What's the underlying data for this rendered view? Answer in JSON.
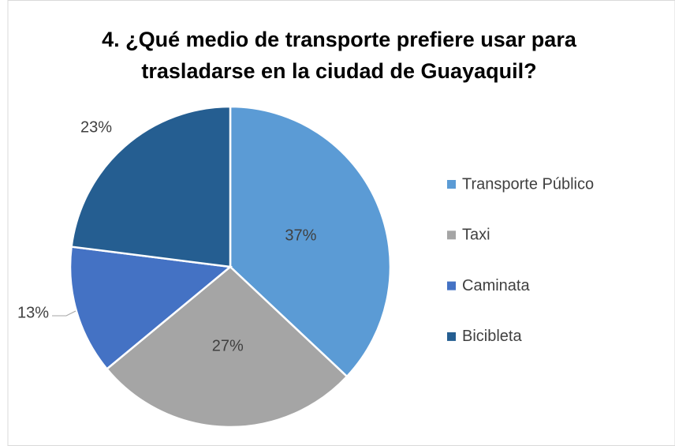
{
  "chart_data": {
    "type": "pie",
    "title": "4. ¿Qué medio de transporte prefiere usar para trasladarse en la ciudad de Guayaquil?",
    "categories": [
      "Transporte Público",
      "Taxi",
      "Caminata",
      "Bicibleta"
    ],
    "values": [
      37,
      27,
      13,
      23
    ],
    "value_labels": [
      "37%",
      "27%",
      "13%",
      "23%"
    ],
    "colors": [
      "#5b9bd5",
      "#a5a5a5",
      "#4472c4",
      "#255e91"
    ],
    "legend": "right"
  }
}
